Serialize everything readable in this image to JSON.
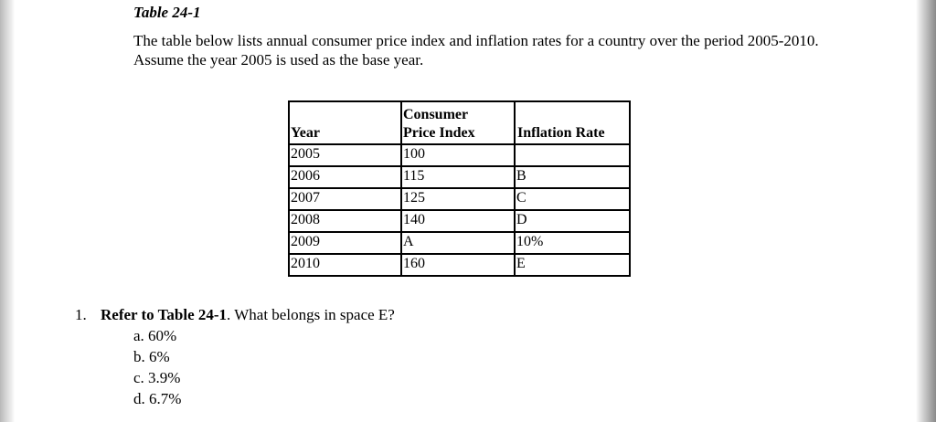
{
  "table_title": "Table 24-1",
  "intro": "The table below lists annual consumer price index and inflation rates for a country over the period 2005-2010. Assume the year 2005 is used as the base year.",
  "table": {
    "headers": {
      "year": "Year",
      "cpi_line1": "Consumer",
      "cpi_line2": "Price Index",
      "inflation": "Inflation Rate"
    },
    "rows": [
      {
        "year": "2005",
        "cpi": "100",
        "inflation": ""
      },
      {
        "year": "2006",
        "cpi": "115",
        "inflation": "B"
      },
      {
        "year": "2007",
        "cpi": "125",
        "inflation": "C"
      },
      {
        "year": "2008",
        "cpi": "140",
        "inflation": "D"
      },
      {
        "year": "2009",
        "cpi": "A",
        "inflation": "10%"
      },
      {
        "year": "2010",
        "cpi": "160",
        "inflation": "E"
      }
    ]
  },
  "question": {
    "number": "1.",
    "ref": "Refer to Table 24-1",
    "text": ". What belongs in space E?"
  },
  "answers": [
    {
      "letter": "a.",
      "text": "60%"
    },
    {
      "letter": "b.",
      "text": "6%"
    },
    {
      "letter": "c.",
      "text": "3.9%"
    },
    {
      "letter": "d.",
      "text": "6.7%"
    }
  ]
}
